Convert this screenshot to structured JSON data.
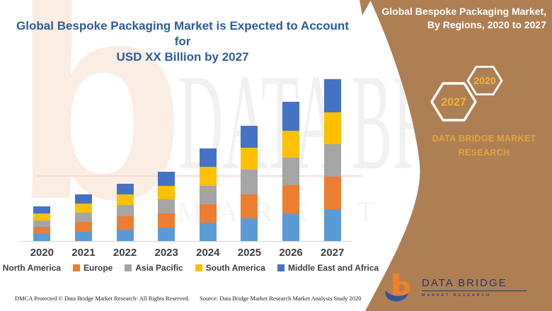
{
  "theme": {
    "panel_brown": "#af7f54",
    "title_blue": "#2f5c9c",
    "hex_gold": "#edb33c",
    "brand_gold": "#dfa43b",
    "logo_navy": "#1f3864",
    "logo_orange": "#f07f2d",
    "logo_swoosh_blue": "#2e5597",
    "axis_label_color": "#3f3f3f",
    "baseline_color": "#d8d8d8"
  },
  "header": {
    "title_line1": "Global Bespoke Packaging Market is Expected to Account for",
    "title_line2": "USD XX Billion by 2027"
  },
  "chart_data": {
    "type": "bar",
    "stacked": true,
    "units": "USD XX Billion (values not disclosed)",
    "categories": [
      "2020",
      "2021",
      "2022",
      "2023",
      "2024",
      "2025",
      "2026",
      "2027"
    ],
    "series": [
      {
        "name": "North America",
        "color": "#5b9bd5",
        "values": [
          10,
          13,
          16,
          19,
          26,
          32,
          39,
          45
        ]
      },
      {
        "name": "Europe",
        "color": "#ed7d31",
        "values": [
          10,
          14,
          19,
          20,
          26,
          34,
          40,
          46
        ]
      },
      {
        "name": "Asia Pacific",
        "color": "#a5a5a5",
        "values": [
          9,
          13,
          16,
          20,
          26,
          35,
          39,
          46
        ]
      },
      {
        "name": "South America",
        "color": "#ffc000",
        "values": [
          10,
          13,
          15,
          19,
          27,
          31,
          38,
          45
        ]
      },
      {
        "name": "Middle East and Africa",
        "color": "#4472c4",
        "values": [
          10,
          13,
          15,
          20,
          26,
          31,
          41,
          47
        ]
      }
    ],
    "totals": [
      49,
      66,
      81,
      98,
      131,
      163,
      197,
      229
    ],
    "title": "Global Bespoke Packaging Market is Expected to Account for USD XX Billion by 2027",
    "xlabel": "",
    "ylabel": "",
    "ylim": [
      0,
      235
    ],
    "y_axis_visible": false,
    "gridlines": false,
    "legend_position": "bottom"
  },
  "side_panel": {
    "title_line1": "Global Bespoke Packaging Market,",
    "title_line2": "By Regions, 2020 to 2027",
    "hexagon_large_year": "2027",
    "hexagon_small_year": "2020",
    "brand_line1": "DATA BRIDGE MARKET",
    "brand_line2": "RESEARCH",
    "logo_title": "DATA BRIDGE",
    "logo_subtitle": "MARKET RESEARCH"
  },
  "watermark": {
    "logo_glyph": "b",
    "text_line1": "DATA BRIDGE",
    "text_line2": "MARKET RESEARCH"
  },
  "footer": {
    "dmca": "DMCA Protected © Data Bridge Market Research- All Rights Reserved.",
    "source": "Source: Data Bridge Market Research Market Analysis Study 2020"
  }
}
